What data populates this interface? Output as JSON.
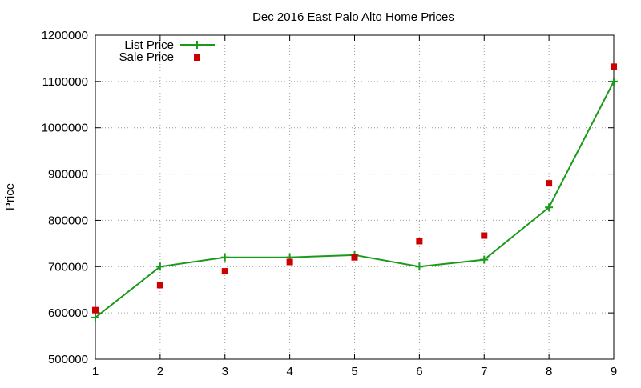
{
  "chart_data": {
    "type": "line",
    "title": "Dec 2016 East Palo Alto Home Prices",
    "xlabel": "",
    "ylabel": "Price",
    "x": [
      1,
      2,
      3,
      4,
      5,
      6,
      7,
      8,
      9
    ],
    "xlim": [
      1,
      9
    ],
    "ylim": [
      500000,
      1200000
    ],
    "xticks": [
      1,
      2,
      3,
      4,
      5,
      6,
      7,
      8,
      9
    ],
    "yticks": [
      500000,
      600000,
      700000,
      800000,
      900000,
      1000000,
      1100000,
      1200000
    ],
    "grid": true,
    "legend_position": "top-left",
    "series": [
      {
        "name": "List Price",
        "style": "line-with-plus-markers",
        "color": "#1a9a1a",
        "values": [
          590000,
          700000,
          720000,
          720000,
          725000,
          700000,
          715000,
          828000,
          1100000
        ]
      },
      {
        "name": "Sale Price",
        "style": "square-markers",
        "color": "#cc0000",
        "values": [
          606000,
          660000,
          690000,
          710000,
          720000,
          755000,
          767000,
          880000,
          1132000
        ]
      }
    ]
  }
}
